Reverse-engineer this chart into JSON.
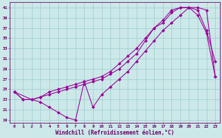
{
  "xlabel": "Windchill (Refroidissement éolien,°C)",
  "bg_color": "#cce8e8",
  "grid_color": "#99cccc",
  "line_color": "#990099",
  "xlim": [
    -0.5,
    23.5
  ],
  "ylim": [
    18.5,
    42
  ],
  "yticks": [
    19,
    21,
    23,
    25,
    27,
    29,
    31,
    33,
    35,
    37,
    39,
    41
  ],
  "xticks": [
    0,
    1,
    2,
    3,
    4,
    5,
    6,
    7,
    8,
    9,
    10,
    11,
    12,
    13,
    14,
    15,
    16,
    17,
    18,
    19,
    20,
    21,
    22,
    23
  ],
  "line1_x": [
    0,
    1,
    2,
    3,
    4,
    5,
    6,
    7,
    8,
    9,
    10,
    11,
    12,
    13,
    14,
    15,
    16,
    17,
    18,
    19,
    20,
    21,
    22,
    23
  ],
  "line1_y": [
    24.5,
    23.0,
    23.0,
    22.5,
    21.5,
    20.5,
    19.5,
    19.0,
    26.5,
    21.5,
    24.0,
    25.5,
    27.0,
    28.5,
    30.5,
    32.5,
    34.5,
    36.5,
    38.0,
    39.5,
    41.0,
    40.5,
    36.5,
    30.5
  ],
  "line2_x": [
    0,
    1,
    2,
    3,
    4,
    5,
    6,
    7,
    8,
    9,
    10,
    11,
    12,
    13,
    14,
    15,
    16,
    17,
    18,
    19,
    20,
    21,
    22,
    23
  ],
  "line2_y": [
    24.5,
    23.0,
    23.0,
    23.5,
    24.0,
    24.5,
    25.0,
    25.5,
    26.0,
    26.5,
    27.0,
    28.0,
    29.0,
    30.5,
    32.0,
    34.5,
    37.0,
    38.5,
    40.5,
    41.0,
    41.0,
    41.0,
    40.5,
    27.5
  ],
  "line3_x": [
    0,
    2,
    3,
    4,
    5,
    6,
    7,
    8,
    9,
    10,
    11,
    12,
    13,
    14,
    15,
    16,
    17,
    18,
    19,
    20,
    21,
    22,
    23
  ],
  "line3_y": [
    24.5,
    23.0,
    23.5,
    24.5,
    25.0,
    25.5,
    26.0,
    26.5,
    27.0,
    27.5,
    28.5,
    30.0,
    31.5,
    33.0,
    35.0,
    37.0,
    38.0,
    40.0,
    41.0,
    41.0,
    39.5,
    36.0,
    27.5
  ],
  "marker": "D",
  "markersize": 2.0,
  "linewidth": 0.8,
  "tick_fontsize": 4.5,
  "xlabel_fontsize": 5.5,
  "font_color": "#660066"
}
